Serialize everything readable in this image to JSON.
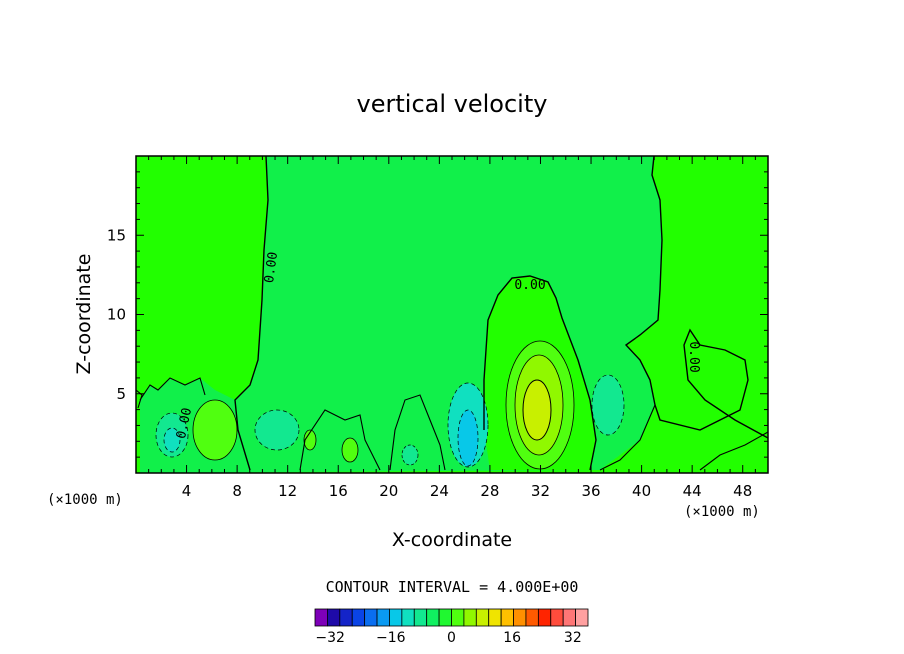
{
  "chart_data": {
    "type": "contour",
    "title": "vertical velocity",
    "xlabel": "X-coordinate",
    "ylabel": "Z-coordinate",
    "x_unit": "(×1000 m)",
    "x_unit_right": "(×1000 m)",
    "xlim": [
      0,
      50
    ],
    "ylim": [
      0,
      20
    ],
    "xticks": [
      4,
      8,
      12,
      16,
      20,
      24,
      28,
      32,
      36,
      40,
      44,
      48
    ],
    "xtick_labels": [
      "4",
      "8",
      "12",
      "16",
      "20",
      "24",
      "28",
      "32",
      "36",
      "40",
      "44",
      "48"
    ],
    "yticks": [
      5,
      10,
      15
    ],
    "ytick_labels": [
      "5",
      "10",
      "15"
    ],
    "contour_interval_text": "CONTOUR INTERVAL = 4.000E+00",
    "contour_interval": 4,
    "contour_labels": [
      "0.00",
      "0.00",
      "0.00",
      "0.00"
    ],
    "field_colors": {
      "background": "#22ff00",
      "inner": "#11f04a"
    },
    "features": [
      {
        "kind": "updraft",
        "x_center": 31.5,
        "z_center": 4.2,
        "max_value": 16
      },
      {
        "kind": "downdraft",
        "x_center": 26.2,
        "z_center": 2.2,
        "min_value": -12
      },
      {
        "kind": "updraft",
        "x_center": 6.2,
        "z_center": 2.5,
        "max_value": 4
      },
      {
        "kind": "downdraft",
        "x_center": 2.7,
        "z_center": 2.2,
        "min_value": -8
      },
      {
        "kind": "downdraft",
        "x_center": 11.3,
        "z_center": 2.6,
        "min_value": -4
      }
    ],
    "colorbar": {
      "min": -36,
      "max": 36,
      "step": 4,
      "tick_values": [
        -32,
        -16,
        0,
        16,
        32
      ],
      "tick_labels": [
        "−32",
        "−16",
        "0",
        "16",
        "32"
      ],
      "colors": [
        "#7d00b8",
        "#1e0aa8",
        "#1424c8",
        "#0a44e6",
        "#0a6ef0",
        "#0a9af2",
        "#08c8e8",
        "#10e0c0",
        "#12e890",
        "#10f060",
        "#20f830",
        "#50ff10",
        "#90f800",
        "#c8f000",
        "#f0e400",
        "#ffc000",
        "#ff9000",
        "#ff5a00",
        "#ff2400",
        "#ff4c3c",
        "#ff7676",
        "#ffa0a0"
      ]
    }
  }
}
